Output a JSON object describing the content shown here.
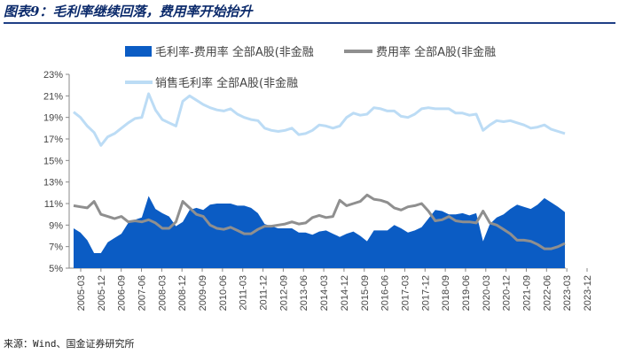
{
  "header": {
    "title": "图表9：毛利率继续回落，费用率开始抬升",
    "source": "来源：Wind、国金证券研究所"
  },
  "colors": {
    "area": "#0b5cc4",
    "expense": "#8f8f8f",
    "gross": "#bcdcf5",
    "axis": "#888888"
  },
  "chart_data": {
    "type": "area",
    "title": "毛利率继续回落，费用率开始抬升",
    "ylim": [
      5,
      23
    ],
    "yticks": [
      5,
      7,
      9,
      11,
      13,
      15,
      17,
      19,
      21,
      23
    ],
    "ytick_labels": [
      "5%",
      "7%",
      "9%",
      "11%",
      "13%",
      "15%",
      "17%",
      "19%",
      "21%",
      "23%"
    ],
    "xtick_labels": [
      "2005-03",
      "2005-12",
      "2006-09",
      "2007-06",
      "2008-03",
      "2008-12",
      "2009-09",
      "2010-06",
      "2011-03",
      "2011-12",
      "2012-09",
      "2013-06",
      "2014-03",
      "2014-12",
      "2015-09",
      "2016-06",
      "2017-03",
      "2017-12",
      "2018-09",
      "2019-06",
      "2020-03",
      "2020-12",
      "2021-09",
      "2022-06",
      "2023-03",
      "2023-12"
    ],
    "legend": [
      "毛利率-费用率 全部A股(非金融",
      "费用率 全部A股(非金融",
      "销售毛利率 全部A股(非金融"
    ],
    "series": [
      {
        "name": "销售毛利率 全部A股(非金融",
        "type": "line",
        "values": [
          19.5,
          19.0,
          18.2,
          17.6,
          16.4,
          17.2,
          17.5,
          18.0,
          18.5,
          18.9,
          19.0,
          21.2,
          19.7,
          18.8,
          18.5,
          18.2,
          20.5,
          21.0,
          20.6,
          20.2,
          19.9,
          19.7,
          19.6,
          19.8,
          19.3,
          19.0,
          18.8,
          18.7,
          18.0,
          17.8,
          17.7,
          17.8,
          18.0,
          17.4,
          17.5,
          17.8,
          18.3,
          18.2,
          18.0,
          18.2,
          19.0,
          19.4,
          19.2,
          19.3,
          19.9,
          19.8,
          19.6,
          19.6,
          19.1,
          19.0,
          19.3,
          19.8,
          19.9,
          19.8,
          19.8,
          19.8,
          19.4,
          19.4,
          19.2,
          19.3,
          17.8,
          18.3,
          18.7,
          18.6,
          18.7,
          18.5,
          18.3,
          18.0,
          18.1,
          18.3,
          17.9,
          17.7,
          17.5
        ]
      },
      {
        "name": "费用率 全部A股(非金融",
        "type": "line",
        "values": [
          10.8,
          10.7,
          10.6,
          11.2,
          10.0,
          9.8,
          9.6,
          9.8,
          9.3,
          9.4,
          9.3,
          9.5,
          9.2,
          8.7,
          8.7,
          9.3,
          11.2,
          10.6,
          10.0,
          9.8,
          9.0,
          8.7,
          8.6,
          8.8,
          8.5,
          8.2,
          8.2,
          8.6,
          8.9,
          8.9,
          9.0,
          9.1,
          9.3,
          9.1,
          9.2,
          9.7,
          9.9,
          9.7,
          9.8,
          11.3,
          10.8,
          11.0,
          11.2,
          11.8,
          11.4,
          11.3,
          11.1,
          10.6,
          10.4,
          10.7,
          10.8,
          11.0,
          10.3,
          9.4,
          9.5,
          9.8,
          9.4,
          9.3,
          9.3,
          9.2,
          10.3,
          9.2,
          9.0,
          8.6,
          8.2,
          7.6,
          7.6,
          7.5,
          7.2,
          6.8,
          6.8,
          7.0,
          7.3
        ]
      },
      {
        "name": "毛利率-费用率 全部A股(非金融",
        "type": "area",
        "values": [
          8.7,
          8.3,
          7.6,
          6.4,
          6.4,
          7.4,
          7.8,
          8.2,
          9.2,
          9.5,
          9.7,
          11.7,
          10.5,
          10.1,
          9.8,
          8.9,
          9.3,
          10.4,
          10.6,
          10.4,
          10.9,
          11.0,
          11.0,
          11.0,
          10.8,
          10.8,
          10.6,
          10.1,
          9.1,
          8.9,
          8.7,
          8.7,
          8.7,
          8.3,
          8.3,
          8.1,
          8.4,
          8.5,
          8.2,
          7.9,
          8.2,
          8.4,
          8.0,
          7.5,
          8.5,
          8.5,
          8.5,
          9.0,
          8.7,
          8.3,
          8.5,
          8.8,
          9.6,
          10.4,
          10.3,
          10.0,
          10.0,
          10.1,
          9.9,
          10.1,
          7.5,
          9.1,
          9.7,
          10.0,
          10.5,
          10.9,
          10.7,
          10.5,
          10.9,
          11.5,
          11.1,
          10.7,
          10.2
        ]
      }
    ]
  }
}
